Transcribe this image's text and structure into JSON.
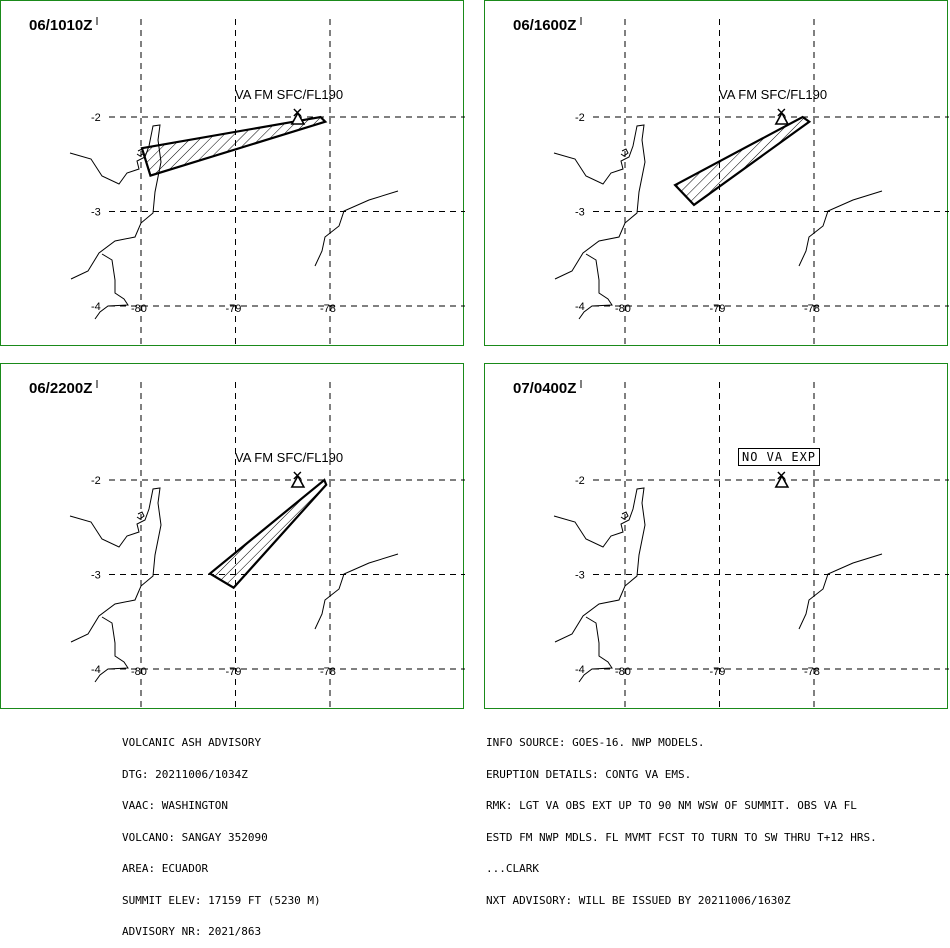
{
  "panels": [
    {
      "time": "06/1010Z",
      "label": "VA FM SFC/FL190",
      "polygon": [
        [
          -79.99,
          -2.33
        ],
        [
          -78.1,
          -2.0
        ],
        [
          -78.05,
          -2.05
        ],
        [
          -79.9,
          -2.62
        ]
      ]
    },
    {
      "time": "06/1600Z",
      "label": "VA FM SFC/FL190",
      "polygon": [
        [
          -79.47,
          -2.72
        ],
        [
          -78.12,
          -2.0
        ],
        [
          -78.05,
          -2.05
        ],
        [
          -79.27,
          -2.93
        ]
      ]
    },
    {
      "time": "06/2200Z",
      "label": "VA FM SFC/FL190",
      "polygon": [
        [
          -79.27,
          -2.99
        ],
        [
          -78.06,
          -2.0
        ],
        [
          -78.04,
          -2.05
        ],
        [
          -79.02,
          -3.14
        ]
      ]
    },
    {
      "time": "07/0400Z",
      "label": "NO VA EXP",
      "polygon": []
    }
  ],
  "axes": {
    "lat_ticks": [
      "-2",
      "-3",
      "-4"
    ],
    "lon_ticks": [
      "-80",
      "-79",
      "-78"
    ]
  },
  "volcano": {
    "lon": -78.34,
    "lat": -2.0
  },
  "info_left": [
    "VOLCANIC ASH ADVISORY",
    "DTG: 20211006/1034Z",
    "VAAC: WASHINGTON",
    "VOLCANO: SANGAY 352090",
    "AREA: ECUADOR",
    "SUMMIT ELEV: 17159 FT (5230 M)",
    "ADVISORY NR: 2021/863"
  ],
  "info_right": [
    "INFO SOURCE: GOES-16. NWP MODELS.",
    "ERUPTION DETAILS: CONTG VA EMS.",
    "RMK: LGT VA OBS EXT UP TO 90 NM WSW OF SUMMIT. OBS VA FL",
    "ESTD FM NWP MDLS. FL MVMT FCST TO TURN TO SW THRU T+12 HRS.",
    "...CLARK",
    "NXT ADVISORY: WILL BE ISSUED BY 20211006/1630Z"
  ]
}
